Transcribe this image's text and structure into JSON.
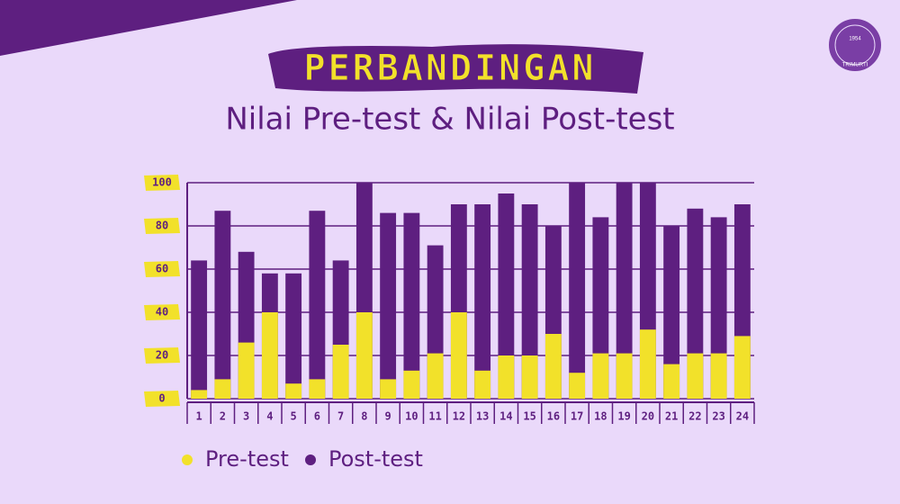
{
  "chart_data": {
    "type": "bar",
    "title": "PERBANDINGAN",
    "subtitle": "Nilai Pre-test & Nilai Post-test",
    "categories": [
      "1",
      "2",
      "3",
      "4",
      "5",
      "6",
      "7",
      "8",
      "9",
      "10",
      "11",
      "12",
      "13",
      "14",
      "15",
      "16",
      "17",
      "18",
      "19",
      "20",
      "21",
      "22",
      "23",
      "24"
    ],
    "series": [
      {
        "name": "Pre-test",
        "color": "#f2e12a",
        "values": [
          4,
          9,
          26,
          40,
          7,
          9,
          25,
          40,
          9,
          13,
          21,
          40,
          13,
          20,
          20,
          30,
          12,
          21,
          21,
          32,
          16,
          21,
          21,
          29
        ]
      },
      {
        "name": "Post-test",
        "color": "#5e1f80",
        "values": [
          64,
          87,
          68,
          58,
          58,
          87,
          64,
          100,
          86,
          86,
          71,
          90,
          90,
          95,
          90,
          80,
          100,
          84,
          100,
          100,
          80,
          88,
          84,
          90
        ]
      }
    ],
    "ylim": [
      0,
      100
    ],
    "yticks": [
      0,
      20,
      40,
      60,
      80,
      100
    ],
    "grid": true,
    "legend": "bottom-left"
  },
  "logo": {
    "year": "1954",
    "name": "TRIMURTI"
  }
}
